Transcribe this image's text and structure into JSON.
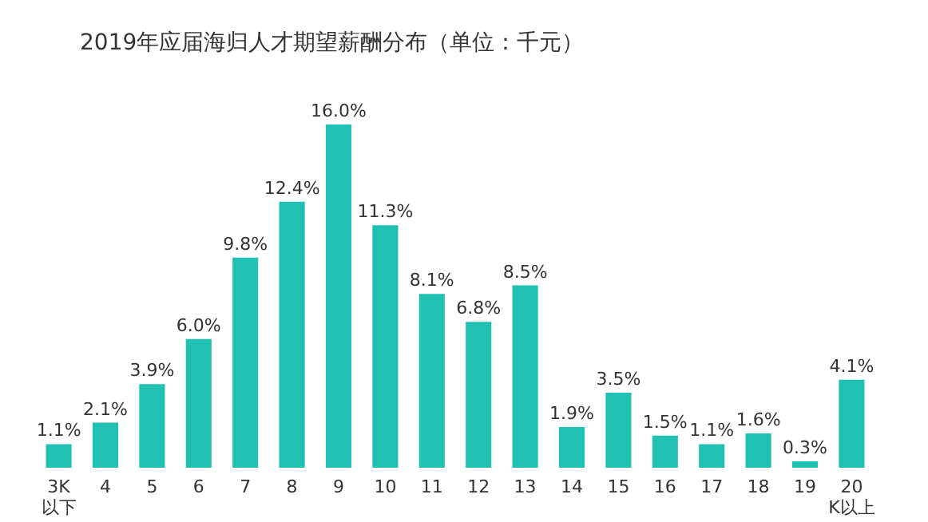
{
  "chart_data": {
    "type": "bar",
    "title": "2019年应届海归人才期望薪酬分布（单位：千元）",
    "categories": [
      "3K以下",
      "4",
      "5",
      "6",
      "7",
      "8",
      "9",
      "10",
      "11",
      "12",
      "13",
      "14",
      "15",
      "16",
      "17",
      "18",
      "19",
      "20K以上"
    ],
    "values": [
      1.1,
      2.1,
      3.9,
      6.0,
      9.8,
      12.4,
      16.0,
      11.3,
      8.1,
      6.8,
      8.5,
      1.9,
      3.5,
      1.5,
      1.1,
      1.6,
      0.3,
      4.1
    ],
    "value_labels": [
      "1.1%",
      "2.1%",
      "3.9%",
      "6.0%",
      "9.8%",
      "12.4%",
      "16.0%",
      "11.3%",
      "8.1%",
      "6.8%",
      "8.5%",
      "1.9%",
      "3.5%",
      "1.5%",
      "1.1%",
      "1.6%",
      "0.3%",
      "4.1%"
    ],
    "color": "#20c1b3"
  }
}
